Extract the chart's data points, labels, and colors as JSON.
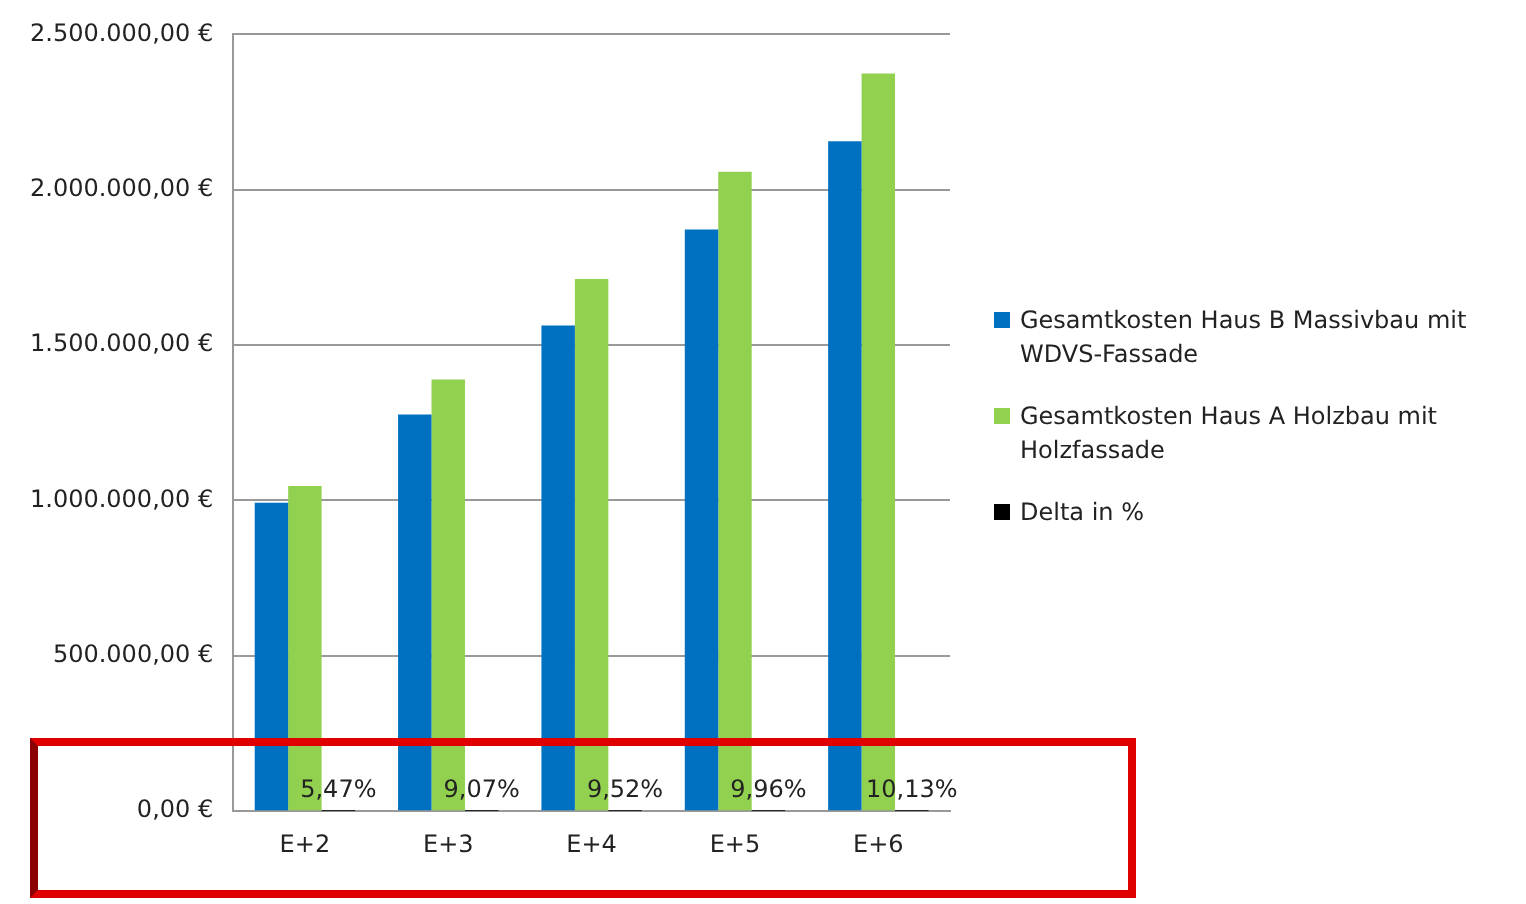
{
  "chart_data": {
    "type": "bar",
    "categories": [
      "E+2",
      "E+3",
      "E+4",
      "E+5",
      "E+6"
    ],
    "series": [
      {
        "name": "Gesamtkosten Haus B Massivbau mit WDVS-Fassade",
        "color": "#0070c0",
        "values": [
          993000,
          1277000,
          1563000,
          1872000,
          2156000
        ]
      },
      {
        "name": "Gesamtkosten Haus A Holzbau mit Holzfassade",
        "color": "#92d050",
        "values": [
          1047000,
          1389000,
          1713000,
          2058000,
          2374000
        ]
      },
      {
        "name": "Delta in %",
        "color": "#000000",
        "values": [
          5.47,
          9.07,
          9.52,
          9.96,
          10.13
        ],
        "value_labels": [
          "5,47%",
          "9,07%",
          "9,52%",
          "9,96%",
          "10,13%"
        ]
      }
    ],
    "ylim": [
      0,
      2500000
    ],
    "yticks": [
      {
        "value": 0,
        "label": "0,00 €"
      },
      {
        "value": 500000,
        "label": "500.000,00 €"
      },
      {
        "value": 1000000,
        "label": "1.000.000,00 €"
      },
      {
        "value": 1500000,
        "label": "1.500.000,00 €"
      },
      {
        "value": 2000000,
        "label": "2.000.000,00 €"
      },
      {
        "value": 2500000,
        "label": "2.500.000,00 €"
      }
    ],
    "grid": "y",
    "legend": "right"
  }
}
